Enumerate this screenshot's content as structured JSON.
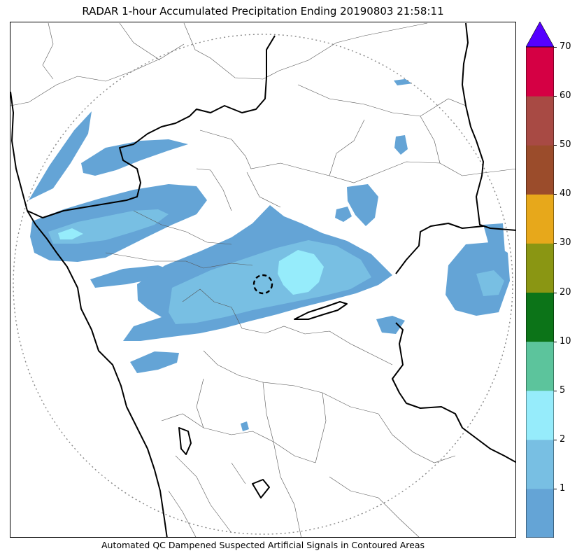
{
  "title": "RADAR 1-hour Accumulated Precipitation Ending 20190803 21:58:11",
  "caption": "Automated QC Dampened Suspected Artificial Signals in Contoured Areas",
  "colorbar": {
    "levels": [
      "1",
      "2",
      "5",
      "10",
      "20",
      "30",
      "40",
      "50",
      "60",
      "70"
    ],
    "colors": [
      "#64a4d6",
      "#78bfe3",
      "#96ecfb",
      "#5cc49c",
      "#0c7418",
      "#8a9613",
      "#e7a81b",
      "#9b4c2b",
      "#a84a44",
      "#d50044",
      "#5500ff"
    ]
  },
  "map_colors": {
    "light_rain": "#64a4d6",
    "moderate_rain": "#78bfe3",
    "heavy_rain": "#96ecfb",
    "border": "#000000",
    "district_lines": "#555555",
    "range_ring": "#888888"
  }
}
